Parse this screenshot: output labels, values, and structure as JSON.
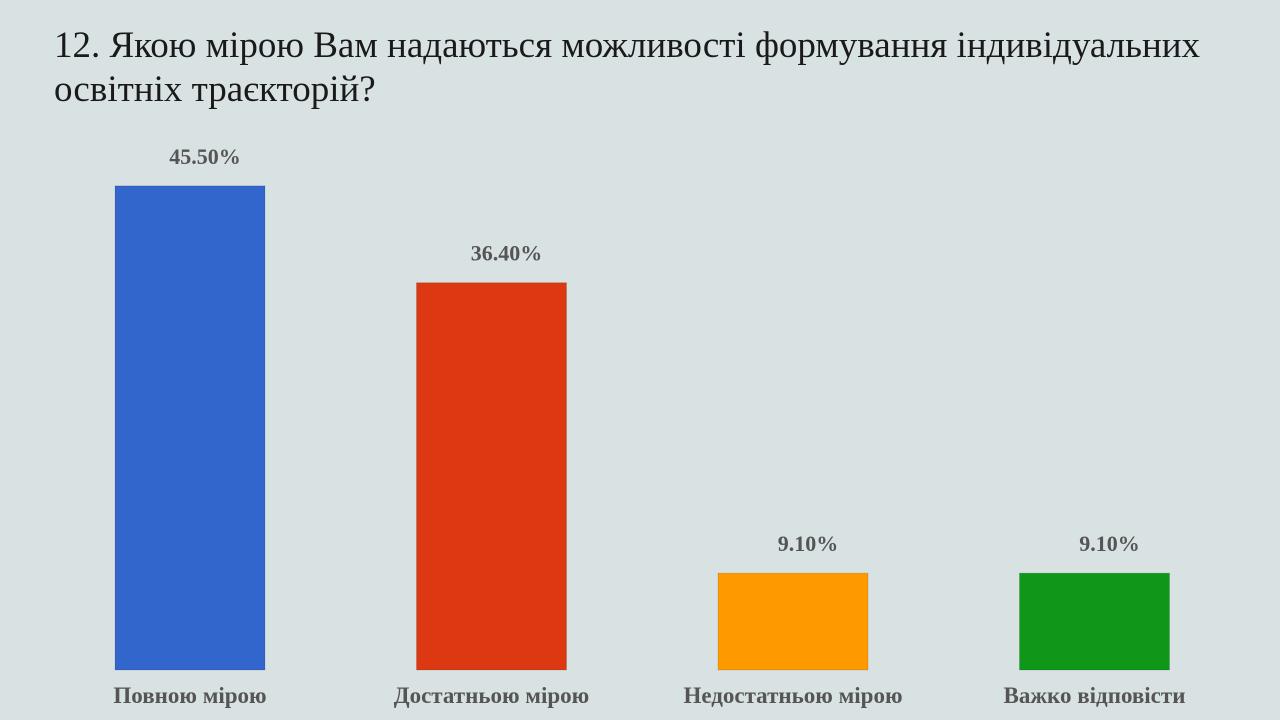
{
  "title": "12. Якою мірою Вам надаються можливості формування індивідуальних освітніх траєкторій?",
  "chart_data": {
    "type": "bar",
    "categories": [
      "Повною мірою",
      "Достатньою мірою",
      "Недостатньою мірою",
      "Важко відповісти"
    ],
    "values": [
      45.5,
      36.4,
      9.1,
      9.1
    ],
    "value_labels": [
      "45.50%",
      "36.40%",
      "9.10%",
      "9.10%"
    ],
    "colors": [
      "#3366cc",
      "#dc3912",
      "#ff9900",
      "#109618"
    ],
    "title": "12. Якою мірою Вам надаються можливості формування індивідуальних освітніх траєкторій?",
    "xlabel": "",
    "ylabel": "",
    "ylim": [
      0,
      50
    ],
    "grid": false,
    "legend": "none"
  }
}
